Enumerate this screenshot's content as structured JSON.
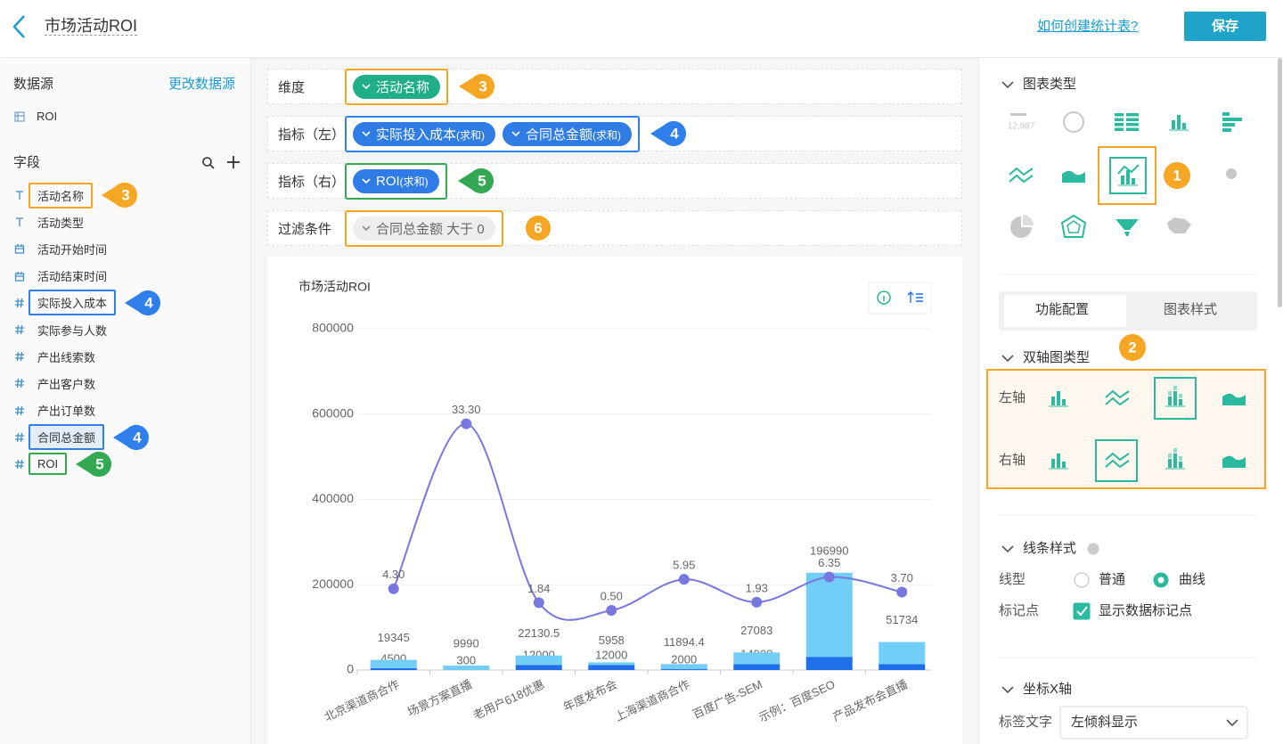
{
  "header": {
    "title": "市场活动ROI",
    "help": "如何创建统计表?",
    "save": "保存"
  },
  "sidebar": {
    "source_label": "数据源",
    "change_source": "更改数据源",
    "source": "ROI",
    "fields_label": "字段",
    "fields": [
      {
        "name": "活动名称",
        "kind": "text",
        "badge": 3,
        "tone": "orange"
      },
      {
        "name": "活动类型",
        "kind": "text"
      },
      {
        "name": "活动开始时间",
        "kind": "date"
      },
      {
        "name": "活动结束时间",
        "kind": "date"
      },
      {
        "name": "实际投入成本",
        "kind": "number",
        "badge": 4,
        "tone": "blue"
      },
      {
        "name": "实际参与人数",
        "kind": "number"
      },
      {
        "name": "产出线索数",
        "kind": "number"
      },
      {
        "name": "产出客户数",
        "kind": "number"
      },
      {
        "name": "产出订单数",
        "kind": "number"
      },
      {
        "name": "合同总金额",
        "kind": "number",
        "badge": 4,
        "tone": "blue"
      },
      {
        "name": "ROI",
        "kind": "number",
        "badge": 5,
        "tone": "green"
      }
    ]
  },
  "config": {
    "agg": "(求和)",
    "rows": [
      {
        "label": "维度",
        "pill": "活动名称",
        "badge": 3,
        "tone": "orange"
      },
      {
        "label": "指标（左）",
        "badge": 4,
        "tone": "blue"
      },
      {
        "label": "指标（右）",
        "badge": 5,
        "tone": "green"
      },
      {
        "label": "过滤条件",
        "filter": "合同总金额 大于 0",
        "badge": 6,
        "tone": "orange"
      }
    ]
  },
  "panel": {
    "chart_types": "图表类型",
    "kpi_sample": "12,987",
    "types_badge": 1,
    "tabs": [
      "功能配置",
      "图表样式"
    ],
    "dual_axis": "双轴图类型",
    "dual_badge": 2,
    "axes": [
      "左轴",
      "右轴"
    ],
    "line_style": "线条样式",
    "line_type": "线型",
    "line_options": [
      "普通",
      "曲线"
    ],
    "markers_label": "标记点",
    "show_markers": "显示数据标记点",
    "x_axis": "坐标X轴",
    "label_text": "标签文字",
    "label_mode": "左倾斜显示"
  },
  "chart_data": {
    "type": "bar-line",
    "title": "市场活动ROI",
    "categories": [
      "北京渠道商合作",
      "场景方案直播",
      "老用户618优惠",
      "年度发布会",
      "上海渠道商合作",
      "百度广告-SEM",
      "示例：百度SEO",
      "产品发布会直播"
    ],
    "series": [
      {
        "name": "实际投入成本",
        "color": "#1f6fe8",
        "values": [
          4500,
          300,
          12000,
          12000,
          2000,
          14000,
          31000,
          14000
        ]
      },
      {
        "name": "合同总金额",
        "color": "#72cdf7",
        "values": [
          19345,
          9990,
          22130.5,
          5958,
          11894.4,
          27083,
          196990,
          51734
        ]
      },
      {
        "name": "ROI",
        "color": "#7877e0",
        "axis": "y2",
        "values": [
          4.3,
          33.3,
          1.84,
          0.5,
          5.95,
          1.93,
          6.35,
          3.7
        ],
        "value_labels": [
          "4.30",
          "33.30",
          "1.84",
          "0.50",
          "5.95",
          "1.93",
          "6.35",
          "3.70"
        ]
      }
    ],
    "ylim": [
      0,
      800000
    ],
    "yticks": [
      0,
      200000,
      400000,
      600000,
      800000
    ],
    "y2lim": [
      -10,
      50
    ],
    "grid": true,
    "stacked": true,
    "smooth": true,
    "markers": true
  }
}
